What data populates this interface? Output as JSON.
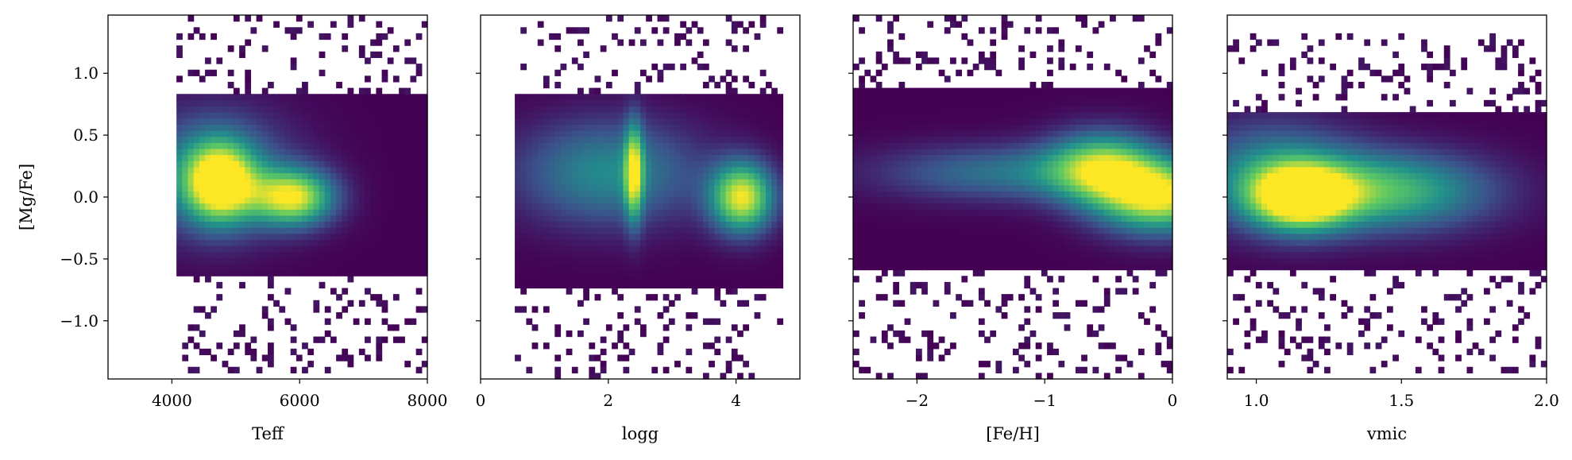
{
  "chart_data": {
    "type": "heatmap",
    "description_free": true,
    "ylabel": "[Mg/Fe]",
    "ylim": [
      -1.47,
      1.47
    ],
    "yticks": [
      -1.0,
      -0.5,
      0.0,
      0.5,
      1.0
    ],
    "ytick_labels": [
      "−1.0",
      "−0.5",
      "0.0",
      "0.5",
      "1.0"
    ],
    "colormap": [
      "#440154",
      "#3b528b",
      "#21918c",
      "#5ec962",
      "#fde725"
    ],
    "panels": [
      {
        "xlabel": "Teff",
        "xlim": [
          3000,
          8000
        ],
        "xticks": [
          4000,
          6000,
          8000
        ],
        "xtick_labels": [
          "4000",
          "6000",
          "8000"
        ],
        "data_xrange": [
          4050,
          8000
        ],
        "core_yrange": [
          -0.65,
          0.85
        ],
        "scatter_yrange": [
          -1.4,
          1.45
        ],
        "peaks": [
          {
            "x": 4750,
            "y": 0.12,
            "sx": 380,
            "sy": 0.22,
            "w": 1.0
          },
          {
            "x": 5900,
            "y": 0.0,
            "sx": 450,
            "sy": 0.16,
            "w": 0.95
          },
          {
            "x": 4600,
            "y": 0.2,
            "sx": 900,
            "sy": 0.35,
            "w": 0.45
          }
        ]
      },
      {
        "xlabel": "logg",
        "xlim": [
          0,
          5
        ],
        "xticks": [
          0,
          2,
          4
        ],
        "xtick_labels": [
          "0",
          "2",
          "4"
        ],
        "data_xrange": [
          0.5,
          4.75
        ],
        "core_yrange": [
          -0.75,
          0.85
        ],
        "scatter_yrange": [
          -1.45,
          1.45
        ],
        "peaks": [
          {
            "x": 4.1,
            "y": 0.0,
            "sx": 0.35,
            "sy": 0.2,
            "w": 1.0
          },
          {
            "x": 2.4,
            "y": 0.2,
            "sx": 0.1,
            "sy": 0.28,
            "w": 0.75
          },
          {
            "x": 2.0,
            "y": 0.2,
            "sx": 1.0,
            "sy": 0.3,
            "w": 0.5
          }
        ]
      },
      {
        "xlabel": "[Fe/H]",
        "xlim": [
          -2.5,
          0
        ],
        "xticks": [
          -2,
          -1,
          0
        ],
        "xtick_labels": [
          "−2",
          "−1",
          "0"
        ],
        "data_xrange": [
          -2.5,
          0
        ],
        "core_yrange": [
          -0.6,
          0.9
        ],
        "scatter_yrange": [
          -1.45,
          1.45
        ],
        "peaks": [
          {
            "x": -0.1,
            "y": 0.0,
            "sx": 0.35,
            "sy": 0.2,
            "w": 1.0
          },
          {
            "x": -0.55,
            "y": 0.25,
            "sx": 0.3,
            "sy": 0.2,
            "w": 0.75
          },
          {
            "x": -1.3,
            "y": 0.2,
            "sx": 0.7,
            "sy": 0.16,
            "w": 0.4
          }
        ]
      },
      {
        "xlabel": "vmic",
        "xlim": [
          0.9,
          2.0
        ],
        "xticks": [
          1.0,
          1.5,
          2.0
        ],
        "xtick_labels": [
          "1.0",
          "1.5",
          "2.0"
        ],
        "data_xrange": [
          0.9,
          2.0
        ],
        "core_yrange": [
          -0.6,
          0.7
        ],
        "scatter_yrange": [
          -1.4,
          1.3
        ],
        "peaks": [
          {
            "x": 1.15,
            "y": 0.0,
            "sx": 0.12,
            "sy": 0.18,
            "w": 1.0
          },
          {
            "x": 1.45,
            "y": 0.05,
            "sx": 0.25,
            "sy": 0.22,
            "w": 0.7
          },
          {
            "x": 1.05,
            "y": 0.2,
            "sx": 0.2,
            "sy": 0.3,
            "w": 0.45
          }
        ]
      }
    ]
  }
}
